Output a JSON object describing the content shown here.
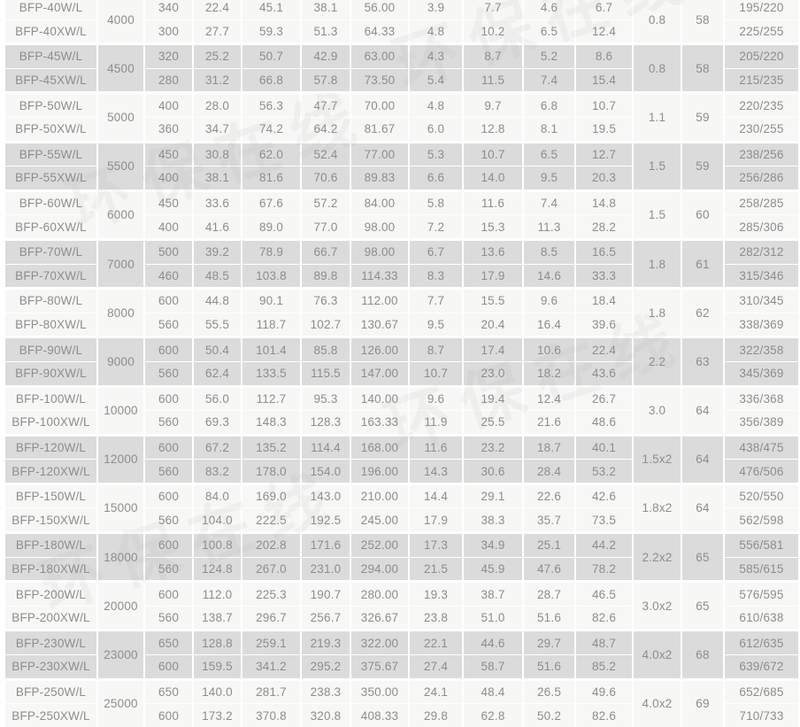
{
  "watermark": {
    "text": "环保在线"
  },
  "colors": {
    "row_light": "#f7f7f6",
    "row_dark": "#dbdbdb",
    "grid": "#ffffff",
    "text": "#8d8d8d"
  },
  "table": {
    "pairs": [
      {
        "capacity": "4000",
        "power": "0.8",
        "noise": "58",
        "rows": [
          {
            "model": "BFP-40W/L",
            "values": [
              "340",
              "22.4",
              "45.1",
              "38.1",
              "56.00",
              "3.9",
              "7.7",
              "4.6",
              "6.7"
            ],
            "weight": "195/220"
          },
          {
            "model": "BFP-40XW/L",
            "values": [
              "300",
              "27.7",
              "59.3",
              "51.3",
              "64.33",
              "4.8",
              "10.2",
              "6.5",
              "12.4"
            ],
            "weight": "225/255"
          }
        ]
      },
      {
        "capacity": "4500",
        "power": "0.8",
        "noise": "58",
        "rows": [
          {
            "model": "BFP-45W/L",
            "values": [
              "320",
              "25.2",
              "50.7",
              "42.9",
              "63.00",
              "4.3",
              "8.7",
              "5.2",
              "8.6"
            ],
            "weight": "205/220"
          },
          {
            "model": "BFP-45XW/L",
            "values": [
              "280",
              "31.2",
              "66.8",
              "57.8",
              "73.50",
              "5.4",
              "11.5",
              "7.4",
              "15.4"
            ],
            "weight": "215/235"
          }
        ]
      },
      {
        "capacity": "5000",
        "power": "1.1",
        "noise": "59",
        "rows": [
          {
            "model": "BFP-50W/L",
            "values": [
              "400",
              "28.0",
              "56.3",
              "47.7",
              "70.00",
              "4.8",
              "9.7",
              "6.8",
              "10.7"
            ],
            "weight": "220/235"
          },
          {
            "model": "BFP-50XW/L",
            "values": [
              "360",
              "34.7",
              "74.2",
              "64.2",
              "81.67",
              "6.0",
              "12.8",
              "8.1",
              "19.5"
            ],
            "weight": "230/255"
          }
        ]
      },
      {
        "capacity": "5500",
        "power": "1.5",
        "noise": "59",
        "rows": [
          {
            "model": "BFP-55W/L",
            "values": [
              "450",
              "30.8",
              "62.0",
              "52.4",
              "77.00",
              "5.3",
              "10.7",
              "6.5",
              "12.7"
            ],
            "weight": "238/256"
          },
          {
            "model": "BFP-55XW/L",
            "values": [
              "400",
              "38.1",
              "81.6",
              "70.6",
              "89.83",
              "6.6",
              "14.0",
              "9.5",
              "20.3"
            ],
            "weight": "256/286"
          }
        ]
      },
      {
        "capacity": "6000",
        "power": "1.5",
        "noise": "60",
        "rows": [
          {
            "model": "BFP-60W/L",
            "values": [
              "450",
              "33.6",
              "67.6",
              "57.2",
              "84.00",
              "5.8",
              "11.6",
              "7.4",
              "14.8"
            ],
            "weight": "258/285"
          },
          {
            "model": "BFP-60XW/L",
            "values": [
              "400",
              "41.6",
              "89.0",
              "77.0",
              "98.00",
              "7.2",
              "15.3",
              "11.3",
              "28.2"
            ],
            "weight": "285/306"
          }
        ]
      },
      {
        "capacity": "7000",
        "power": "1.8",
        "noise": "61",
        "rows": [
          {
            "model": "BFP-70W/L",
            "values": [
              "500",
              "39.2",
              "78.9",
              "66.7",
              "98.00",
              "6.7",
              "13.6",
              "8.5",
              "16.5"
            ],
            "weight": "282/312"
          },
          {
            "model": "BFP-70XW/L",
            "values": [
              "460",
              "48.5",
              "103.8",
              "89.8",
              "114.33",
              "8.3",
              "17.9",
              "14.6",
              "33.3"
            ],
            "weight": "315/346"
          }
        ]
      },
      {
        "capacity": "8000",
        "power": "1.8",
        "noise": "62",
        "rows": [
          {
            "model": "BFP-80W/L",
            "values": [
              "600",
              "44.8",
              "90.1",
              "76.3",
              "112.00",
              "7.7",
              "15.5",
              "9.6",
              "18.4"
            ],
            "weight": "310/345"
          },
          {
            "model": "BFP-80XW/L",
            "values": [
              "560",
              "55.5",
              "118.7",
              "102.7",
              "130.67",
              "9.5",
              "20.4",
              "16.4",
              "39.6"
            ],
            "weight": "338/369"
          }
        ]
      },
      {
        "capacity": "9000",
        "power": "2.2",
        "noise": "63",
        "rows": [
          {
            "model": "BFP-90W/L",
            "values": [
              "600",
              "50.4",
              "101.4",
              "85.8",
              "126.00",
              "8.7",
              "17.4",
              "10.6",
              "22.4"
            ],
            "weight": "322/358"
          },
          {
            "model": "BFP-90XW/L",
            "values": [
              "560",
              "62.4",
              "133.5",
              "115.5",
              "147.00",
              "10.7",
              "23.0",
              "18.2",
              "43.6"
            ],
            "weight": "345/369"
          }
        ]
      },
      {
        "capacity": "10000",
        "power": "3.0",
        "noise": "64",
        "rows": [
          {
            "model": "BFP-100W/L",
            "values": [
              "600",
              "56.0",
              "112.7",
              "95.3",
              "140.00",
              "9.6",
              "19.4",
              "12.4",
              "26.7"
            ],
            "weight": "336/368"
          },
          {
            "model": "BFP-100XW/L",
            "values": [
              "560",
              "69.3",
              "148.3",
              "128.3",
              "163.33",
              "11.9",
              "25.5",
              "21.6",
              "48.6"
            ],
            "weight": "356/389"
          }
        ]
      },
      {
        "capacity": "12000",
        "power": "1.5x2",
        "noise": "64",
        "rows": [
          {
            "model": "BFP-120W/L",
            "values": [
              "600",
              "67.2",
              "135.2",
              "114.4",
              "168.00",
              "11.6",
              "23.2",
              "18.7",
              "40.1"
            ],
            "weight": "438/475"
          },
          {
            "model": "BFP-120XW/L",
            "values": [
              "560",
              "83.2",
              "178.0",
              "154.0",
              "196.00",
              "14.3",
              "30.6",
              "28.4",
              "53.2"
            ],
            "weight": "476/506"
          }
        ]
      },
      {
        "capacity": "15000",
        "power": "1.8x2",
        "noise": "64",
        "rows": [
          {
            "model": "BFP-150W/L",
            "values": [
              "600",
              "84.0",
              "169.0",
              "143.0",
              "210.00",
              "14.4",
              "29.1",
              "22.6",
              "42.6"
            ],
            "weight": "520/550"
          },
          {
            "model": "BFP-150XW/L",
            "values": [
              "560",
              "104.0",
              "222.5",
              "192.5",
              "245.00",
              "17.9",
              "38.3",
              "35.7",
              "73.5"
            ],
            "weight": "562/598"
          }
        ]
      },
      {
        "capacity": "18000",
        "power": "2.2x2",
        "noise": "65",
        "rows": [
          {
            "model": "BFP-180W/L",
            "values": [
              "600",
              "100.8",
              "202.8",
              "171.6",
              "252.00",
              "17.3",
              "34.9",
              "25.1",
              "44.2"
            ],
            "weight": "556/581"
          },
          {
            "model": "BFP-180XW/L",
            "values": [
              "560",
              "124.8",
              "267.0",
              "231.0",
              "294.00",
              "21.5",
              "45.9",
              "47.6",
              "78.2"
            ],
            "weight": "585/615"
          }
        ]
      },
      {
        "capacity": "20000",
        "power": "3.0x2",
        "noise": "65",
        "rows": [
          {
            "model": "BFP-200W/L",
            "values": [
              "600",
              "112.0",
              "225.3",
              "190.7",
              "280.00",
              "19.3",
              "38.7",
              "28.7",
              "46.5"
            ],
            "weight": "576/595"
          },
          {
            "model": "BFP-200XW/L",
            "values": [
              "560",
              "138.7",
              "296.7",
              "256.7",
              "326.67",
              "23.8",
              "51.0",
              "51.6",
              "82.6"
            ],
            "weight": "610/638"
          }
        ]
      },
      {
        "capacity": "23000",
        "power": "4.0x2",
        "noise": "68",
        "rows": [
          {
            "model": "BFP-230W/L",
            "values": [
              "650",
              "128.8",
              "259.1",
              "219.3",
              "322.00",
              "22.1",
              "44.6",
              "29.7",
              "48.7"
            ],
            "weight": "612/635"
          },
          {
            "model": "BFP-230XW/L",
            "values": [
              "600",
              "159.5",
              "341.2",
              "295.2",
              "375.67",
              "27.4",
              "58.7",
              "51.6",
              "85.2"
            ],
            "weight": "639/672"
          }
        ]
      },
      {
        "capacity": "25000",
        "power": "4.0x2",
        "noise": "69",
        "rows": [
          {
            "model": "BFP-250W/L",
            "values": [
              "650",
              "140.0",
              "281.7",
              "238.3",
              "350.00",
              "24.1",
              "48.4",
              "26.5",
              "49.6"
            ],
            "weight": "652/685"
          },
          {
            "model": "BFP-250XW/L",
            "values": [
              "600",
              "173.2",
              "370.8",
              "320.8",
              "408.33",
              "29.8",
              "62.8",
              "50.2",
              "82.6"
            ],
            "weight": "710/733"
          }
        ]
      }
    ]
  }
}
